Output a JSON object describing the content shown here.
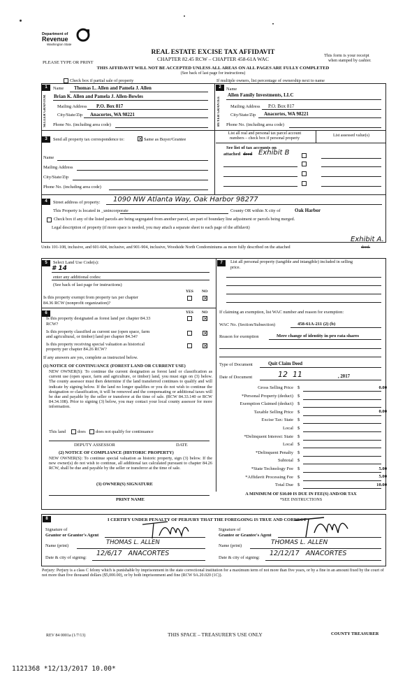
{
  "header": {
    "logo_text_top": "Department of",
    "logo_text_main": "Revenue",
    "logo_text_sub": "Washington State",
    "title": "REAL ESTATE EXCISE TAX AFFIDAVIT",
    "chapter": "CHAPTER 82.45 RCW – CHAPTER 458-61A WAC",
    "type_print": "PLEASE TYPE OR PRINT",
    "receipt_note_1": "This form is your receipt",
    "receipt_note_2": "when stamped by cashier.",
    "warning": "THIS AFFIDAVIT WILL NOT BE ACCEPTED UNLESS ALL AREAS ON ALL PAGES ARE FULLY COMPLETED",
    "see_back": "(See back of last page for instructions)"
  },
  "partial_sale": {
    "checkbox_label": "Check box if partial sale of property",
    "multiple_owners": "If multiple owners, list percentage of ownership next to name"
  },
  "seller": {
    "num": "1",
    "side_label": "SELLER GRANTOR",
    "name_label": "Name",
    "name_1": "Thomas L. Allen and Pamela J. Allen",
    "name_2": "Brian K. Allen and Pamela J. Allen-Bowles",
    "mailing_label": "Mailing Address",
    "mailing": "P.O. Box 817",
    "city_label": "City/State/Zip",
    "city": "Anacortes, WA 98221",
    "phone_label": "Phone No. (including area code)"
  },
  "buyer": {
    "num": "2",
    "side_label": "BUYER GRANTEE",
    "name_label": "Name",
    "name_1": "Allen Family Investments, LLC",
    "mailing_label": "Mailing Address",
    "mailing": "P.O. Box 817",
    "city_label": "City/State/Zip",
    "city": "Anacortes, WA 98221",
    "phone_label": "Phone No. (including area code)"
  },
  "correspondence": {
    "num": "3",
    "label": "Send all property tax correspondence to:",
    "same_as": "Same as Buyer/Grantee",
    "name_label": "Name",
    "mailing_label": "Mailing Address",
    "city_label": "City/State/Zip",
    "phone_label": "Phone No. (including area code)"
  },
  "parcels": {
    "header_1": "List all real and personal tax parcel account",
    "header_2": "numbers – check box if personal property",
    "assessed_header": "List assessed value(s)",
    "see_list_1": "See list of tax accounts on",
    "see_list_2": "attached",
    "deed_struck": "deed",
    "exhibit_hand": "Exhibit B"
  },
  "street": {
    "num": "4",
    "label": "Street address of property:",
    "value_hand": "1090 NW Atlanta Way, Oak Harbor 98277",
    "located_in": "This Property is located in _unincorporate",
    "county_text": "County OR  within X city of",
    "city_bold": "Oak Harbor",
    "boundary_text": "Check box if any of the listed parcels are being segregated from another parcel, are part of boundary line adjustment or parcels being merged.",
    "legal_text": "Legal description of property (if more space is needed, you may attach a separate sheet to each page of the affidavit)",
    "exhibit_a_hand": "Exhibit A.",
    "units_text": "Units 101-108, inclusive, and 601-604, inclusive, and 901-904, inclusive, Woodside North Condominiums as more fully described on the attached",
    "units_deed": "deed."
  },
  "section5": {
    "num": "5",
    "land_use_label": "Select Land Use Code(s):",
    "land_use_hand": "# 14",
    "additional_label": "enter any additional codes:",
    "see_back": "(See back of last page for instructions)",
    "yes": "YES",
    "no": "NO",
    "exempt_q_1": "Is this property exempt from property tax per chapter",
    "exempt_q_2": "84.36 RCW (nonprofit organization)?"
  },
  "section6": {
    "num": "6",
    "yes": "YES",
    "no": "NO",
    "q1_1": "Is this property designated as forest land per chapter 84.33",
    "q1_2": "RCW?",
    "q2_1": "Is this property classified as current use (open space, farm",
    "q2_2": "and agricultural, or timber) land per chapter 84.34?",
    "q3_1": "Is this property receiving special valuation as historical",
    "q3_2": "property per chapter 84.26 RCW?",
    "if_yes": "If any answers are yes, complete as instructed below.",
    "notice1_title": "(1) NOTICE OF CONTINUANCE (FOREST LAND OR CURRENT USE)",
    "notice1_body": "NEW OWNER(S): To continue the current designation as forest land or classification as current use (open space, farm and agriculture, or timber) land, you must sign on (3) below. The county assessor must then determine if the land transferred continues to qualify and will indicate by signing below. If the land no longer qualifies or you do not wish to continue the designation or classification, it will be removed and the compensating or additional taxes will be due and payable by the seller or transferor at the time of sale. (RCW 84.33.140 or RCW 84.34.108). Prior to signing (3) below, you may contact your local county assessor for more information.",
    "this_land": "This land",
    "does": "does",
    "does_not": "does not qualify for continuance",
    "deputy": "DEPUTY ASSESSOR",
    "date": "DATE",
    "notice2_title": "(2) NOTICE OF COMPLIANCE (HISTORIC PROPERTY)",
    "notice2_body": "NEW OWNER(S): To continue special valuation as historic property, sign (3) below. If the new owner(s) do not wish to continue, all additional tax calculated pursuant to chapter 84.26 RCW, shall be due and payable by the seller or transferor at the time of sale.",
    "owner_sig": "(3) OWNER(S) SIGNATURE",
    "print_name": "PRINT NAME"
  },
  "section7": {
    "num": "7",
    "personal_1": "List all personal property (tangible and intangible) included in selling",
    "personal_2": "price.",
    "exemption_claim": "If claiming an exemption, list WAC number and reason for exemption:",
    "wac_label": "WAC No. (Section/Subsection)",
    "wac_value": "458-61A-211 (2) (b)",
    "reason_label": "Reason for exemption",
    "reason_value": "Mere change of identity in pro rata shares",
    "doc_type_label": "Type of Document",
    "doc_type_value": "Quit Claim Deed",
    "doc_date_label": "Date of Document",
    "doc_date_hand": "12  11",
    "doc_year": ", 2017"
  },
  "tax": {
    "rows": [
      {
        "label": "Gross Selling Price",
        "value": "0.00"
      },
      {
        "label": "*Personal Property (deduct)",
        "value": ""
      },
      {
        "label": "Exemption Claimed (deduct)",
        "value": ""
      },
      {
        "label": "Taxable Selling Price",
        "value": "0.00"
      },
      {
        "label": "Excise Tax:  State",
        "value": ""
      },
      {
        "label": "Local",
        "value": ""
      },
      {
        "label": "*Delinquent Interest:  State",
        "value": ""
      },
      {
        "label": "Local",
        "value": ""
      },
      {
        "label": "*Delinquent Penalty",
        "value": ""
      },
      {
        "label": "Subtotal",
        "value": ""
      },
      {
        "label": "*State Technology Fee",
        "value": "5.00"
      },
      {
        "label": "*Affidavit Processing Fee",
        "value": "5.00"
      },
      {
        "label": "Total Due",
        "value": "10.00"
      }
    ],
    "currency": "$",
    "minimum": "A MINIMUM OF $10.00 IS DUE IN FEE(S) AND/OR TAX",
    "see_instr": "*SEE INSTRUCTIONS"
  },
  "section8": {
    "num": "8",
    "certify": "I CERTIFY UNDER PENALTY OF PERJURY THAT THE FOREGOING IS TRUE AND CORRECT",
    "sig_grantor_label_1": "Signature of",
    "sig_grantor_label_2": "Grantor or Grantor's Agent",
    "name_print_label": "Name (print)",
    "grantor_name_hand": "THOMAS L. ALLEN",
    "date_city_label": "Date & city of signing:",
    "grantor_date_hand": "12/6/17   ANACORTES",
    "sig_grantee_label_1": "Signature of",
    "sig_grantee_label_2": "Grantee or Grantee's Agent",
    "grantee_name_hand": "THOMAS L. ALLEN",
    "grantee_date_hand": "12/12/17   ANACORTES",
    "perjury": "Perjury: Perjury is a class C felony which is punishable by imprisonment in the state correctional institution for a maximum term of not more than five years, or by a fine in an amount fixed by the court of not more than five thousand dollars ($5,000.00), or by both imprisonment and fine (RCW 9A.20.020 (1C))."
  },
  "footer": {
    "rev": "REV 84 0001a (1/7/13)",
    "treasurer_space": "THIS SPACE – TREASURER'S USE ONLY",
    "county_treasurer": "COUNTY TREASURER",
    "stamp": "1121368 *12/13/2017 10.00*"
  }
}
